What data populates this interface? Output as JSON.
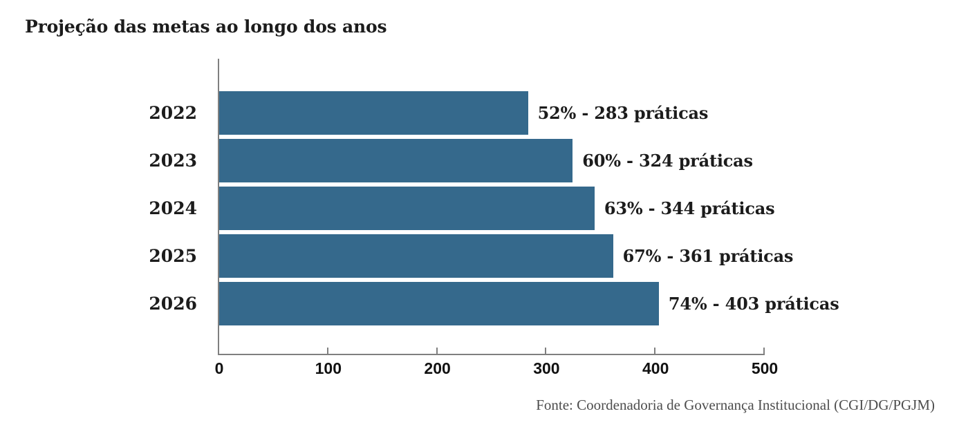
{
  "chart_data": {
    "type": "bar",
    "orientation": "horizontal",
    "title": "Projeção das metas ao longo dos anos",
    "categories": [
      "2022",
      "2023",
      "2024",
      "2025",
      "2026"
    ],
    "values": [
      283,
      324,
      344,
      361,
      403
    ],
    "percentages": [
      52,
      60,
      63,
      67,
      74
    ],
    "bar_labels": [
      "52% - 283 práticas",
      "60% - 324 práticas",
      "63% - 344 práticas",
      "67% - 361 práticas",
      "74% - 403 práticas"
    ],
    "unit": "práticas",
    "x_ticks": [
      0,
      100,
      200,
      300,
      400,
      500
    ],
    "xlim": [
      0,
      500
    ],
    "grid": false,
    "legend": false,
    "colors": {
      "bar": "#35698c",
      "axis": "#7f7f7f",
      "label_text": "#1c1c1c",
      "source_text": "#4d4d4d"
    },
    "source": "Fonte: Coordenadoria de Governança Institucional (CGI/DG/PGJM)"
  }
}
